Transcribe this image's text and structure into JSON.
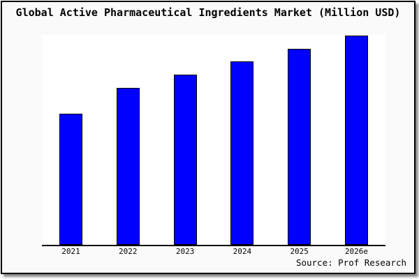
{
  "window": {
    "background_color": "#fafafa",
    "border_color": "#000000",
    "plot_background_color": "#ffffff"
  },
  "header": {
    "title": "Global Active Pharmaceutical Ingredients Market (Million USD)"
  },
  "chart_data": {
    "type": "bar",
    "title": "Global Active Pharmaceutical Ingredients Market (Million USD)",
    "categories": [
      "2021",
      "2022",
      "2023",
      "2024",
      "2025",
      "2026e"
    ],
    "values": [
      62.5,
      74.8,
      81.1,
      87.4,
      93.4,
      99.7
    ],
    "values_unit": "percent of plot height (no numeric y-axis shown in chart)",
    "xlabel": "",
    "ylabel": "",
    "ylim": [
      0,
      100
    ],
    "grid": false,
    "legend": null,
    "bar_color": "#0000ff",
    "bar_border_color": "#000000",
    "axis_color": "#000000"
  },
  "footer": {
    "source": "Source: Prof Research"
  }
}
